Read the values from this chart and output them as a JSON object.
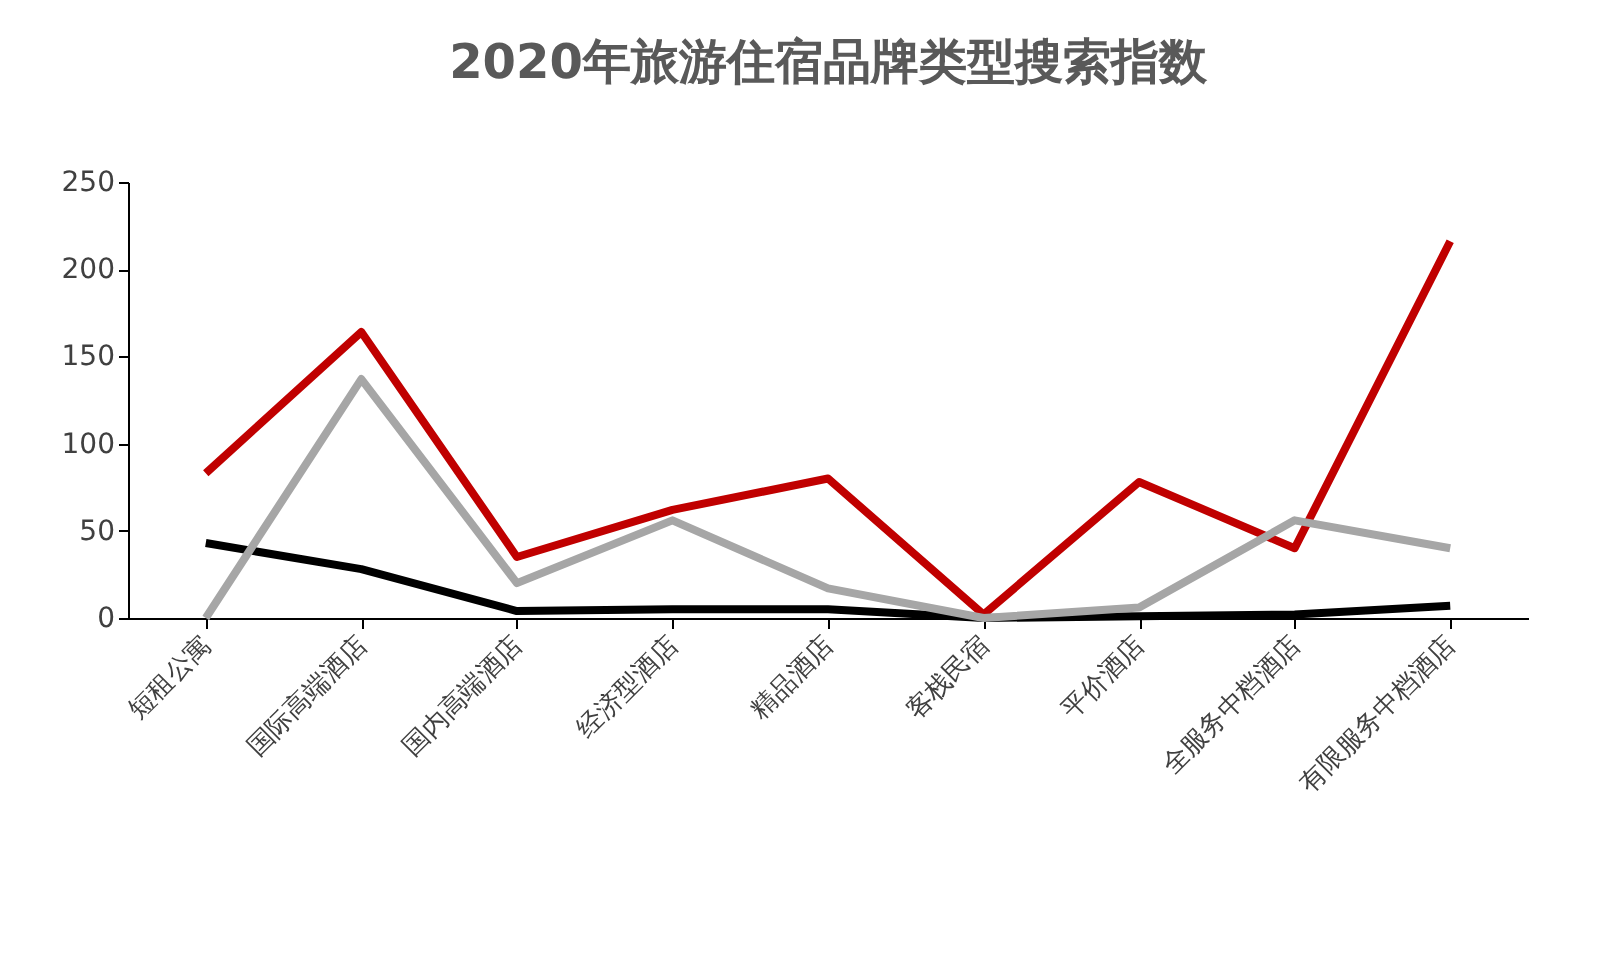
{
  "chart_data": {
    "type": "line",
    "title": "2020年旅游住宿品牌类型搜索指数",
    "categories": [
      "短租公寓",
      "国际高端酒店",
      "国内高端酒店",
      "经济型酒店",
      "精品酒店",
      "客栈民宿",
      "平价酒店",
      "全服务中档酒店",
      "有限服务中档酒店"
    ],
    "series": [
      {
        "color": "#c00000",
        "values": [
          83,
          164,
          35,
          62,
          80,
          2,
          78,
          40,
          216
        ]
      },
      {
        "color": "#000000",
        "values": [
          43,
          28,
          4,
          5,
          5,
          0,
          1,
          2,
          7
        ]
      },
      {
        "color": "#a6a6a6",
        "values": [
          0,
          137,
          20,
          56,
          17,
          0,
          6,
          56,
          40
        ]
      }
    ],
    "ylim": [
      0,
      250
    ],
    "yticks": [
      0,
      50,
      100,
      150,
      200,
      250
    ],
    "grid": false,
    "legend": false,
    "marker": "none",
    "line_style": "solid"
  }
}
